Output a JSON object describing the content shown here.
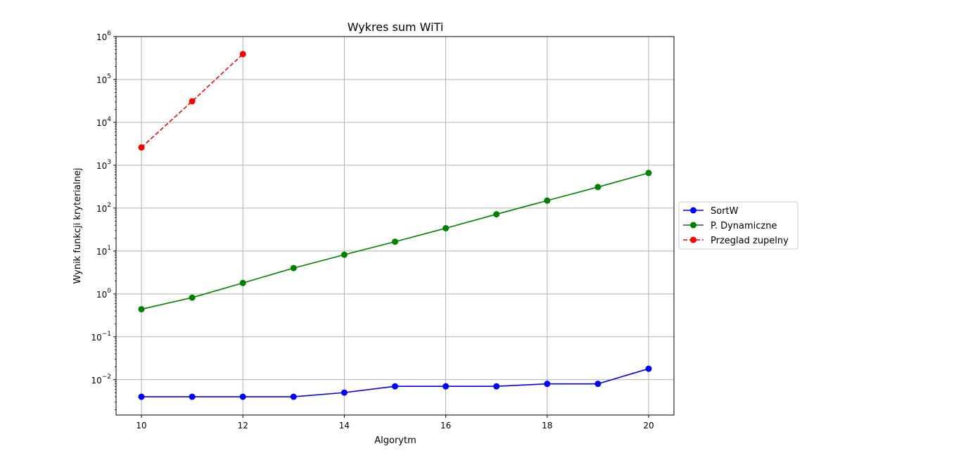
{
  "chart_data": {
    "type": "line",
    "title": "Wykres sum WiTi",
    "xlabel": "Algorytm",
    "ylabel": "Wynik funkcji kryterialnej",
    "yscale": "log",
    "xlim": [
      9.5,
      20.5
    ],
    "ylim": [
      0.0015,
      1000000
    ],
    "grid": true,
    "legend_position": "outside-right",
    "x_ticks": [
      10,
      12,
      14,
      16,
      18,
      20
    ],
    "y_ticks": [
      {
        "base": "10",
        "exp": "−2"
      },
      {
        "base": "10",
        "exp": "−1"
      },
      {
        "base": "10",
        "exp": "0"
      },
      {
        "base": "10",
        "exp": "1"
      },
      {
        "base": "10",
        "exp": "2"
      },
      {
        "base": "10",
        "exp": "3"
      },
      {
        "base": "10",
        "exp": "4"
      },
      {
        "base": "10",
        "exp": "5"
      },
      {
        "base": "10",
        "exp": "6"
      }
    ],
    "y_tick_values": [
      0.01,
      0.1,
      1,
      10,
      100,
      1000,
      10000,
      100000,
      1000000
    ],
    "series": [
      {
        "name": "SortW",
        "color": "#0000ff",
        "linestyle": "solid",
        "marker": "circle",
        "x": [
          10,
          11,
          12,
          13,
          14,
          15,
          16,
          17,
          18,
          19,
          20
        ],
        "y": [
          0.004,
          0.004,
          0.004,
          0.004,
          0.005,
          0.007,
          0.007,
          0.007,
          0.008,
          0.008,
          0.018
        ]
      },
      {
        "name": "P. Dynamiczne",
        "color": "#008000",
        "linestyle": "solid",
        "marker": "circle",
        "x": [
          10,
          11,
          12,
          13,
          14,
          15,
          16,
          17,
          18,
          19,
          20
        ],
        "y": [
          0.44,
          0.82,
          1.8,
          4.0,
          8.2,
          16.5,
          34,
          72,
          150,
          310,
          660
        ]
      },
      {
        "name": "Przeglad zupelny",
        "color": "#ff0000",
        "linestyle": "dashed",
        "marker": "circle",
        "x": [
          10,
          11,
          12
        ],
        "y": [
          2600,
          31000,
          390000
        ]
      }
    ]
  }
}
